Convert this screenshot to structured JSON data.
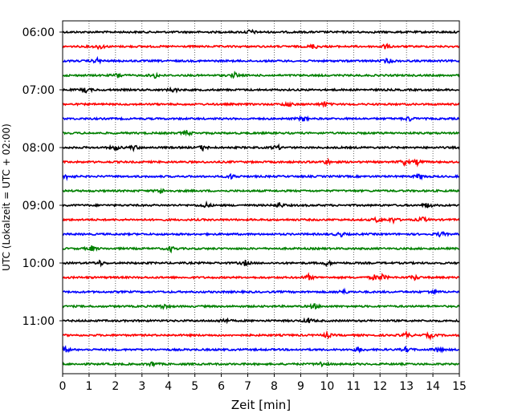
{
  "chart_data": {
    "type": "line",
    "title": "",
    "xlabel": "Zeit  [min]",
    "ylabel": "UTC (Lokalzeit = UTC + 02:00)",
    "xlim": [
      0,
      15
    ],
    "x_ticks": [
      "0",
      "1",
      "2",
      "3",
      "4",
      "5",
      "6",
      "7",
      "8",
      "9",
      "10",
      "11",
      "12",
      "13",
      "14",
      "15"
    ],
    "y_tick_labels": [
      "06:00",
      "07:00",
      "08:00",
      "09:00",
      "10:00",
      "11:00"
    ],
    "grid": "vertical-dotted",
    "trace_interval_min": 15,
    "start_time": "06:00",
    "color_cycle": [
      "#000000",
      "#ff0000",
      "#0000ff",
      "#008000"
    ],
    "traces": [
      {
        "time": "06:00",
        "events_min": [
          7.1
        ]
      },
      {
        "time": "06:15",
        "events_min": [
          1.4,
          9.5,
          12.2
        ]
      },
      {
        "time": "06:30",
        "events_min": [
          1.3,
          12.3
        ]
      },
      {
        "time": "06:45",
        "events_min": [
          2.1,
          3.5,
          6.5
        ]
      },
      {
        "time": "07:00",
        "events_min": [
          0.9,
          4.2
        ]
      },
      {
        "time": "07:15",
        "events_min": [
          8.5,
          9.9
        ]
      },
      {
        "time": "07:30",
        "events_min": [
          9.1,
          13.1
        ]
      },
      {
        "time": "07:45",
        "events_min": [
          4.7
        ]
      },
      {
        "time": "08:00",
        "events_min": [
          2.0,
          2.7,
          5.3,
          8.1
        ]
      },
      {
        "time": "08:15",
        "events_min": [
          10.0,
          12.9,
          13.4
        ]
      },
      {
        "time": "08:30",
        "events_min": [
          0.2,
          6.4,
          13.5
        ]
      },
      {
        "time": "08:45",
        "events_min": [
          3.7
        ]
      },
      {
        "time": "09:00",
        "events_min": [
          5.4,
          8.2,
          13.8
        ]
      },
      {
        "time": "09:15",
        "events_min": [
          11.9,
          12.5,
          13.6
        ]
      },
      {
        "time": "09:30",
        "events_min": [
          10.5,
          14.3
        ]
      },
      {
        "time": "09:45",
        "events_min": [
          1.1,
          4.1
        ]
      },
      {
        "time": "10:00",
        "events_min": [
          1.4,
          6.9,
          10.0
        ]
      },
      {
        "time": "10:15",
        "events_min": [
          9.3,
          11.8,
          12.1,
          13.3
        ]
      },
      {
        "time": "10:30",
        "events_min": [
          10.6,
          14.0
        ]
      },
      {
        "time": "10:45",
        "events_min": [
          3.8,
          9.5
        ]
      },
      {
        "time": "11:00",
        "events_min": [
          6.1,
          9.3
        ]
      },
      {
        "time": "11:15",
        "events_min": [
          10.0,
          13.0,
          13.9
        ]
      },
      {
        "time": "11:30",
        "events_min": [
          0.1,
          11.2,
          13.0,
          14.2
        ]
      },
      {
        "time": "11:45",
        "events_min": [
          3.4,
          9.8
        ]
      }
    ]
  }
}
